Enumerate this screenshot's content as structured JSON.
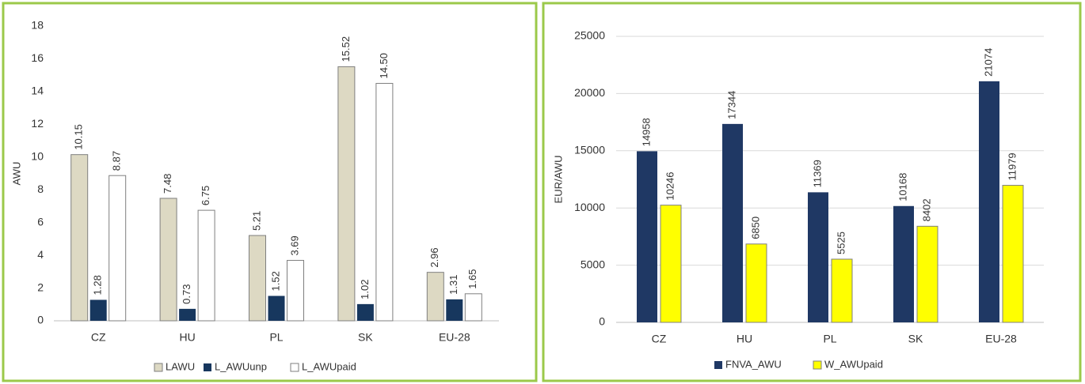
{
  "chart_data": [
    {
      "type": "bar",
      "y_label": "AWU",
      "categories": [
        "CZ",
        "HU",
        "PL",
        "SK",
        "EU-28"
      ],
      "series": [
        {
          "name": "LAWU",
          "color": "#ddd9c3",
          "values": [
            10.15,
            7.48,
            5.21,
            15.52,
            2.96
          ],
          "value_labels": [
            "10.15",
            "7.48",
            "5.21",
            "15.52",
            "2.96"
          ]
        },
        {
          "name": "L_AWUunp",
          "color": "#17375e",
          "values": [
            1.28,
            0.73,
            1.52,
            1.02,
            1.31
          ],
          "value_labels": [
            "1.28",
            "0.73",
            "1.52",
            "1.02",
            "1.31"
          ]
        },
        {
          "name": "L_AWUpaid",
          "color": "#ffffff",
          "values": [
            8.87,
            6.75,
            3.69,
            14.5,
            1.65
          ],
          "value_labels": [
            "8.87",
            "6.75",
            "3.69",
            "14.50",
            "1.65"
          ]
        }
      ],
      "ylim": [
        0,
        18
      ],
      "yticks": [
        0,
        2,
        4,
        6,
        8,
        10,
        12,
        14,
        16,
        18
      ],
      "grid": false,
      "legend": "bottom"
    },
    {
      "type": "bar",
      "y_label": "EUR/AWU",
      "categories": [
        "CZ",
        "HU",
        "PL",
        "SK",
        "EU-28"
      ],
      "series": [
        {
          "name": "FNVA_AWU",
          "color": "#1f3864",
          "values": [
            14958,
            17344,
            11369,
            10168,
            21074
          ]
        },
        {
          "name": "W_AWUpaid",
          "color": "#ffff00",
          "values": [
            10246,
            6850,
            5525,
            8402,
            11979
          ]
        }
      ],
      "ylim": [
        0,
        25000
      ],
      "yticks": [
        0,
        5000,
        10000,
        15000,
        20000,
        25000
      ],
      "grid": true,
      "legend": "bottom"
    }
  ]
}
